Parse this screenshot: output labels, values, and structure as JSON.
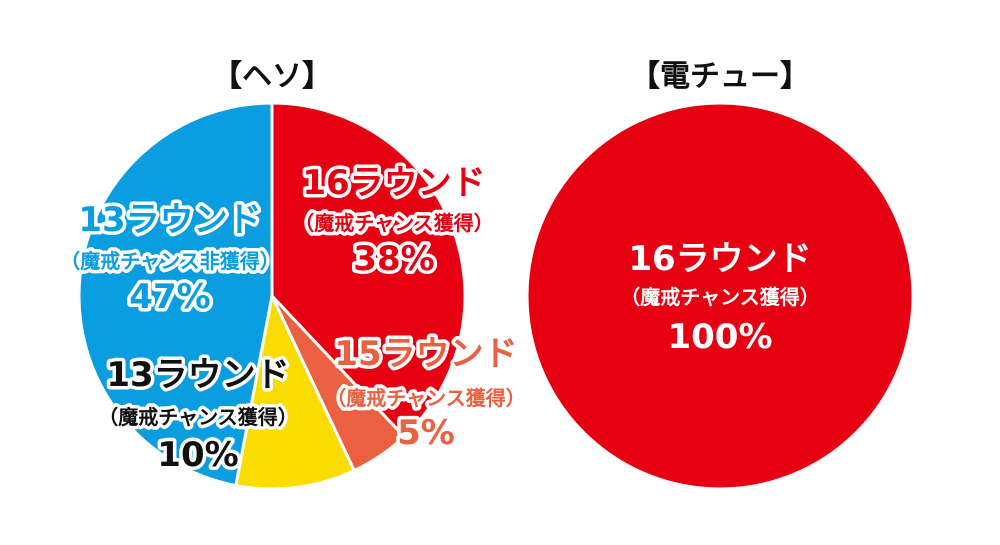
{
  "chart_data": [
    {
      "type": "pie",
      "title": "【ヘソ】",
      "slices": [
        {
          "label": "16ラウンド",
          "note": "（魔戒チャンス獲得）",
          "value": 38,
          "value_label": "38%",
          "color": "#e60012",
          "label_color": "#e60012"
        },
        {
          "label": "15ラウンド",
          "note": "（魔戒チャンス獲得）",
          "value": 5,
          "value_label": "5%",
          "color": "#ea6040",
          "label_color": "#ea6040"
        },
        {
          "label": "13ラウンド",
          "note": "（魔戒チャンス獲得）",
          "value": 10,
          "value_label": "10%",
          "color": "#fadc00",
          "label_color": "#111111"
        },
        {
          "label": "13ラウンド",
          "note": "（魔戒チャンス非獲得）",
          "value": 47,
          "value_label": "47%",
          "color": "#0a9ee0",
          "label_color": "#0a9ee0"
        }
      ]
    },
    {
      "type": "pie",
      "title": "【電チュー】",
      "slices": [
        {
          "label": "16ラウンド",
          "note": "（魔戒チャンス獲得）",
          "value": 100,
          "value_label": "100%",
          "color": "#e60012",
          "label_color": "#ffffff"
        }
      ]
    }
  ]
}
